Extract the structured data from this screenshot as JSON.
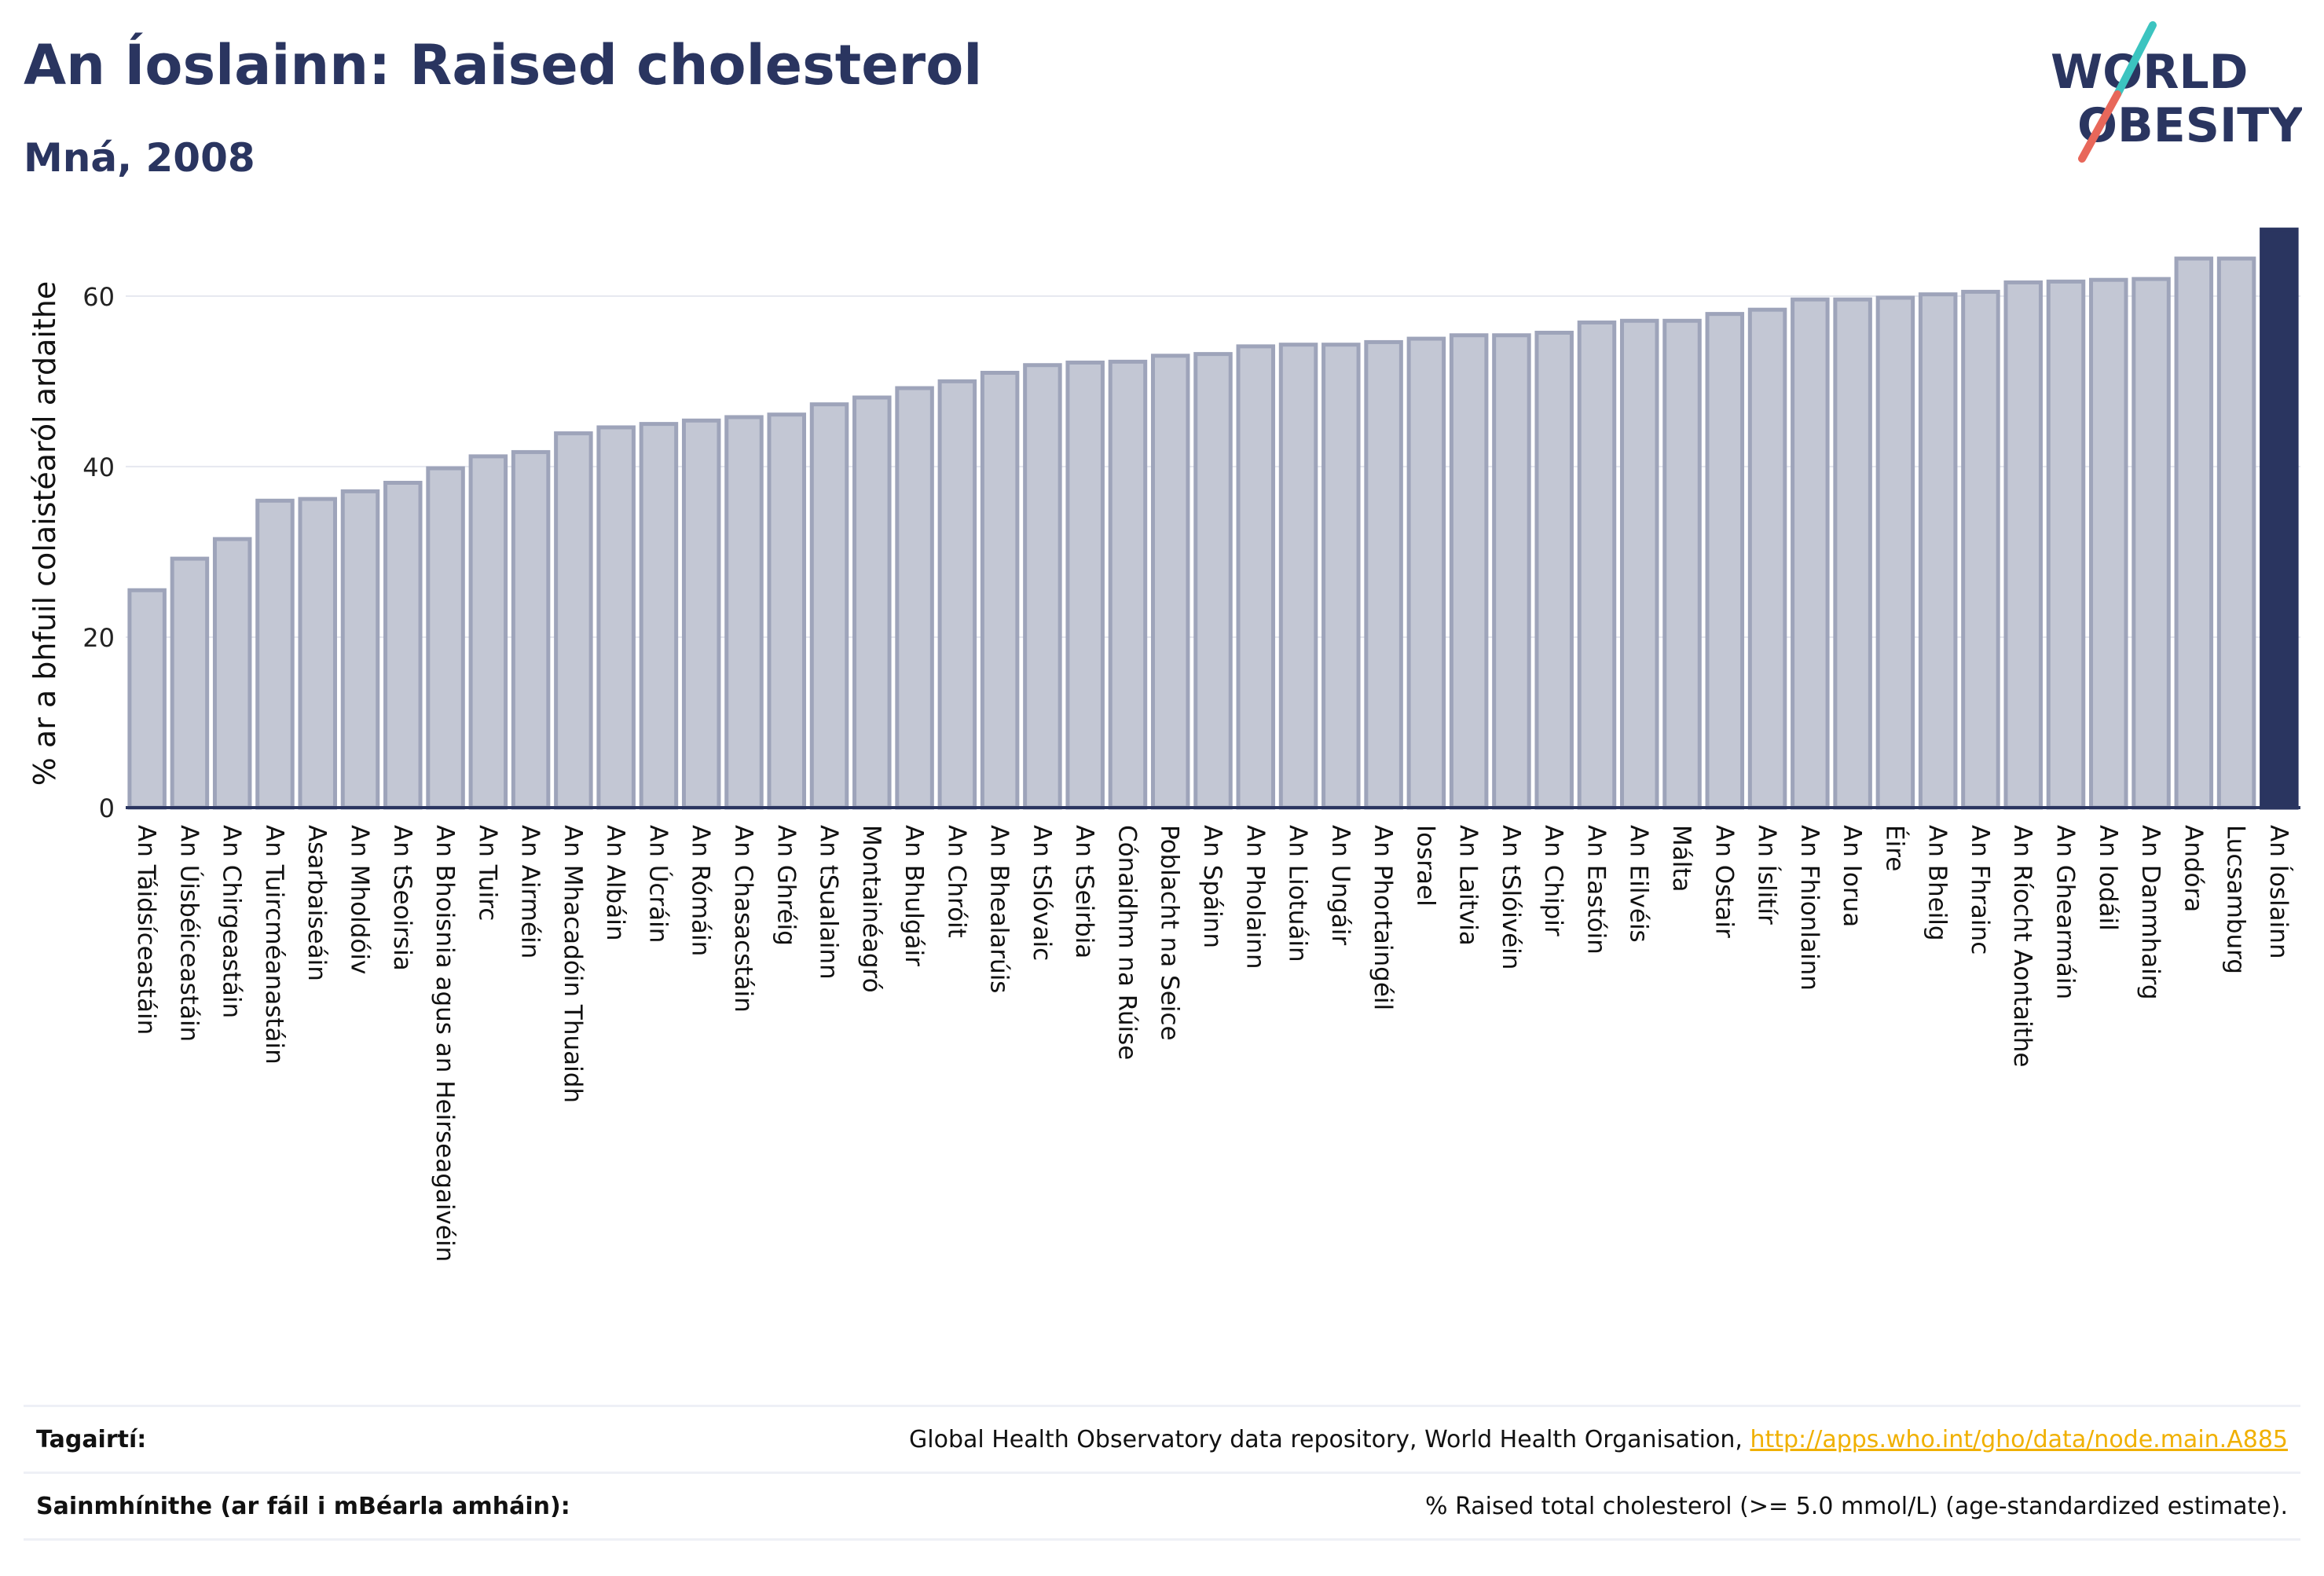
{
  "header": {
    "title": "An Íoslainn: Raised cholesterol",
    "subtitle": "Mná, 2008"
  },
  "logo": {
    "line1": "WORLD",
    "line2": "OBESITY"
  },
  "colors": {
    "bar_fill": "#c3c7d4",
    "bar_stroke": "#9ea4ba",
    "highlight": "#2a3560",
    "logo_slash_top": "#3cc4c0",
    "logo_slash_bottom": "#e8675a",
    "link": "#f0b000"
  },
  "chart_data": {
    "type": "bar",
    "ylabel": "% ar a bhfuil colaistéaról ardaithe",
    "ylim": [
      0,
      68
    ],
    "yticks": [
      0,
      20,
      40,
      60
    ],
    "grid": true,
    "highlight_category": "An Íoslainn",
    "categories": [
      "An Táidsíceastáin",
      "An Úisbéiceastáin",
      "An Chirgeastáin",
      "An Tuircméanastáin",
      "Asarbaiseáin",
      "An Mholdóiv",
      "An tSeoirsia",
      "An Bhoisnia agus an Heirseagaivéin",
      "An Tuirc",
      "An Airméin",
      "An Mhacadóin Thuaidh",
      "An Albáin",
      "An Úcráin",
      "An Rómáin",
      "An Chasacstáin",
      "An Ghréig",
      "An tSualainn",
      "Montainéagró",
      "An Bhulgáir",
      "An Chróit",
      "An Bhealarúis",
      "An tSlóvaic",
      "An tSeirbia",
      "Cónaidhm na Rúise",
      "Poblacht na Seice",
      "An Spáinn",
      "An Pholainn",
      "An Liotuáin",
      "An Ungáir",
      "An Phortaingéil",
      "Iosrael",
      "An Laitvia",
      "An tSlóivéin",
      "An Chipir",
      "An Eastóin",
      "An Eilvéis",
      "Málta",
      "An Ostair",
      "An Íslitír",
      "An Fhionlainn",
      "An Iorua",
      "Éire",
      "An Bheilg",
      "An Fhrainc",
      "An Ríocht Aontaithe",
      "An Ghearmáin",
      "An Iodáil",
      "An Danmhairg",
      "Andóra",
      "Lucsamburg",
      "An Íoslainn"
    ],
    "values": [
      25.5,
      29.2,
      31.5,
      36.0,
      36.2,
      37.1,
      38.1,
      39.8,
      41.2,
      41.7,
      43.9,
      44.6,
      45.0,
      45.4,
      45.8,
      46.1,
      47.3,
      48.1,
      49.2,
      50.0,
      51.0,
      51.9,
      52.2,
      52.3,
      53.0,
      53.2,
      54.1,
      54.3,
      54.3,
      54.6,
      55.0,
      55.4,
      55.4,
      55.7,
      56.9,
      57.1,
      57.1,
      57.9,
      58.4,
      59.6,
      59.6,
      59.8,
      60.2,
      60.5,
      61.6,
      61.7,
      61.9,
      62.0,
      64.4,
      64.4,
      67.8
    ]
  },
  "references": {
    "source_label": "Tagairtí:",
    "source_text": "Global Health Observatory data repository, World Health Organisation, ",
    "source_link": "http://apps.who.int/gho/data/node.main.A885",
    "definition_label": "Sainmhínithe (ar fáil i mBéarla amháin):",
    "definition_text": "% Raised total cholesterol (>= 5.0 mmol/L) (age-standardized estimate)."
  }
}
